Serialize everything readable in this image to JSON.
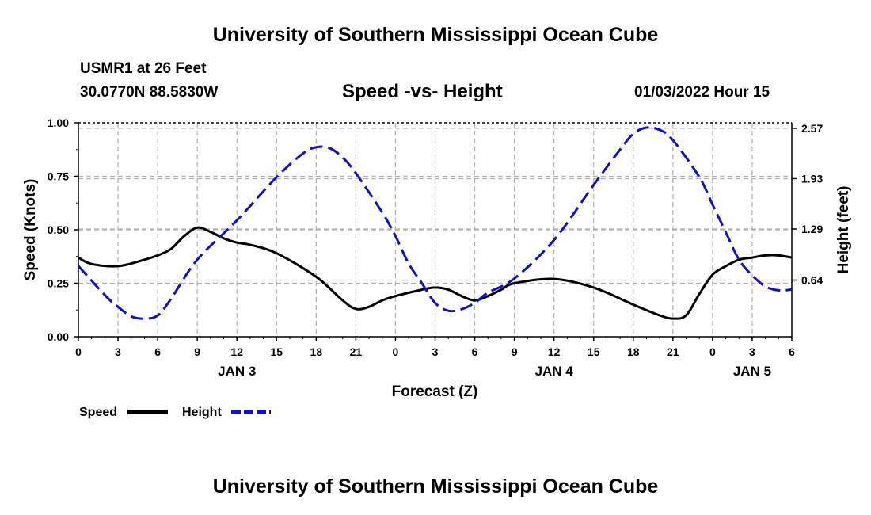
{
  "header": {
    "title": "University of Southern Mississippi Ocean Cube",
    "station": "USMR1 at 26 Feet",
    "coords": "30.0770N  88.5830W",
    "subtitle": "Speed -vs- Height",
    "datetime": "01/03/2022 Hour 15",
    "footer_title": "University of Southern Mississippi Ocean Cube"
  },
  "legend": {
    "speed_label": "Speed",
    "height_label": "Height"
  },
  "colors": {
    "speed": "#000000",
    "height": "#1010cc",
    "grid": "#b0b0b0"
  },
  "chart_data": {
    "type": "line",
    "title": "Speed -vs- Height",
    "xlabel": "Forecast (Z)",
    "ylabel": "Speed (Knots)",
    "y2label": "Height (feet)",
    "xlim": [
      0,
      54
    ],
    "ylim": [
      0,
      1.0
    ],
    "y2lim": [
      -0.08,
      2.64
    ],
    "x_ticks": [
      0,
      3,
      6,
      9,
      12,
      15,
      18,
      21,
      24,
      27,
      30,
      33,
      36,
      39,
      42,
      45,
      48,
      51,
      54
    ],
    "x_tick_labels": [
      "0",
      "3",
      "6",
      "9",
      "12",
      "15",
      "18",
      "21",
      "0",
      "3",
      "6",
      "9",
      "12",
      "15",
      "18",
      "21",
      "0",
      "3",
      "6"
    ],
    "day_labels": [
      {
        "x": 12,
        "label": "JAN 3"
      },
      {
        "x": 36,
        "label": "JAN 4"
      },
      {
        "x": 51,
        "label": "JAN 5"
      }
    ],
    "y_ticks": [
      0.0,
      0.25,
      0.5,
      0.75,
      1.0
    ],
    "y_tick_labels": [
      "0.00",
      "0.25",
      "0.50",
      "0.75",
      "1.00"
    ],
    "y2_ticks": [
      0.64,
      1.29,
      1.93,
      2.57
    ],
    "y2_tick_labels": [
      "0.64",
      "1.29",
      "1.93",
      "2.57"
    ],
    "series": [
      {
        "name": "Speed",
        "axis": "left",
        "style": "solid",
        "x": [
          0,
          1,
          3,
          5,
          6,
          7,
          8,
          9,
          10,
          11,
          12,
          13,
          15,
          18,
          20,
          21,
          22,
          23,
          24,
          26,
          27,
          28,
          29,
          30,
          31,
          32,
          33,
          36,
          39,
          42,
          44,
          45,
          46,
          47,
          48,
          49,
          50,
          51,
          52,
          53,
          54
        ],
        "values": [
          0.37,
          0.34,
          0.33,
          0.36,
          0.38,
          0.41,
          0.47,
          0.51,
          0.49,
          0.46,
          0.44,
          0.43,
          0.39,
          0.28,
          0.17,
          0.13,
          0.14,
          0.17,
          0.19,
          0.22,
          0.23,
          0.22,
          0.19,
          0.17,
          0.19,
          0.22,
          0.25,
          0.27,
          0.23,
          0.15,
          0.1,
          0.085,
          0.1,
          0.2,
          0.29,
          0.33,
          0.36,
          0.37,
          0.38,
          0.38,
          0.37
        ]
      },
      {
        "name": "Height",
        "axis": "right",
        "style": "dashed",
        "x": [
          0,
          2,
          3,
          4,
          5,
          6,
          7,
          9,
          12,
          15,
          17,
          18,
          19,
          20,
          21,
          23,
          24,
          25,
          26,
          27,
          28,
          29,
          30,
          31,
          33,
          36,
          39,
          41,
          42,
          43,
          44,
          45,
          47,
          48,
          49,
          50,
          51,
          52,
          53,
          54
        ],
        "values": [
          0.82,
          0.45,
          0.3,
          0.18,
          0.15,
          0.19,
          0.4,
          0.9,
          1.4,
          1.95,
          2.25,
          2.33,
          2.32,
          2.2,
          2.0,
          1.5,
          1.2,
          0.85,
          0.6,
          0.35,
          0.25,
          0.27,
          0.35,
          0.48,
          0.66,
          1.15,
          1.85,
          2.3,
          2.5,
          2.58,
          2.55,
          2.42,
          1.95,
          1.6,
          1.25,
          0.9,
          0.7,
          0.56,
          0.51,
          0.52
        ]
      }
    ]
  }
}
